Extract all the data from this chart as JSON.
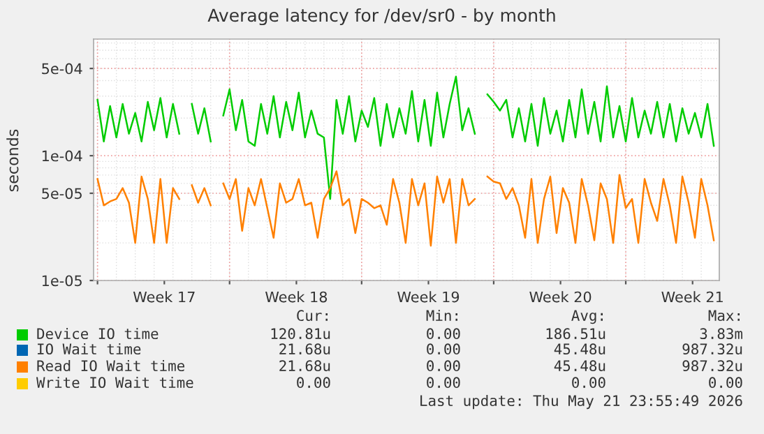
{
  "chart_data": {
    "type": "line",
    "title": "Average latency for /dev/sr0 - by month",
    "ylabel": "seconds",
    "log": "y",
    "grid": true,
    "legend": "bottom",
    "marker": "none",
    "line_style": "solid",
    "xlim": [
      "2026-04-19T19:00",
      "2026-05-22T23:00"
    ],
    "ylim": [
      1e-05,
      0.00086
    ],
    "xticks": [
      {
        "value": "2026-04-20",
        "label": null
      },
      {
        "value": "2026-04-23T13:00",
        "label": "Week 17"
      },
      {
        "value": "2026-04-27",
        "label": null
      },
      {
        "value": "2026-04-30T13:00",
        "label": "Week 18"
      },
      {
        "value": "2026-05-04",
        "label": null
      },
      {
        "value": "2026-05-07T13:00",
        "label": "Week 19"
      },
      {
        "value": "2026-05-11",
        "label": null
      },
      {
        "value": "2026-05-14T13:00",
        "label": "Week 20"
      },
      {
        "value": "2026-05-18",
        "label": null
      },
      {
        "value": "2026-05-21T13:00",
        "label": "Week 21"
      }
    ],
    "yticks": [
      {
        "value": 1e-05,
        "label": "1e-05"
      },
      {
        "value": 5e-05,
        "label": "5e-05"
      },
      {
        "value": 0.0001,
        "label": "1e-04"
      },
      {
        "value": 0.0005,
        "label": "5e-04"
      }
    ],
    "x": [
      "2026-04-20T00:00",
      "2026-04-20T08:00",
      "2026-04-20T16:00",
      "2026-04-21T00:00",
      "2026-04-21T08:00",
      "2026-04-21T16:00",
      "2026-04-22T00:00",
      "2026-04-22T08:00",
      "2026-04-22T16:00",
      "2026-04-23T00:00",
      "2026-04-23T08:00",
      "2026-04-23T16:00",
      "2026-04-24T00:00",
      "2026-04-24T08:00",
      "2026-04-24T16:00",
      "2026-04-25T00:00",
      "2026-04-25T08:00",
      "2026-04-25T16:00",
      "2026-04-26T00:00",
      "2026-04-26T08:00",
      "2026-04-26T16:00",
      "2026-04-27T00:00",
      "2026-04-27T08:00",
      "2026-04-27T16:00",
      "2026-04-28T00:00",
      "2026-04-28T08:00",
      "2026-04-28T16:00",
      "2026-04-29T00:00",
      "2026-04-29T08:00",
      "2026-04-29T16:00",
      "2026-04-30T00:00",
      "2026-04-30T08:00",
      "2026-04-30T16:00",
      "2026-05-01T00:00",
      "2026-05-01T08:00",
      "2026-05-01T16:00",
      "2026-05-02T00:00",
      "2026-05-02T08:00",
      "2026-05-02T16:00",
      "2026-05-03T00:00",
      "2026-05-03T08:00",
      "2026-05-03T16:00",
      "2026-05-04T00:00",
      "2026-05-04T08:00",
      "2026-05-04T16:00",
      "2026-05-05T00:00",
      "2026-05-05T08:00",
      "2026-05-05T16:00",
      "2026-05-06T00:00",
      "2026-05-06T08:00",
      "2026-05-06T16:00",
      "2026-05-07T00:00",
      "2026-05-07T08:00",
      "2026-05-07T16:00",
      "2026-05-08T00:00",
      "2026-05-08T08:00",
      "2026-05-08T16:00",
      "2026-05-09T00:00",
      "2026-05-09T08:00",
      "2026-05-09T16:00",
      "2026-05-10T00:00",
      "2026-05-10T08:00",
      "2026-05-10T16:00",
      "2026-05-11T00:00",
      "2026-05-11T08:00",
      "2026-05-11T16:00",
      "2026-05-12T00:00",
      "2026-05-12T08:00",
      "2026-05-12T16:00",
      "2026-05-13T00:00",
      "2026-05-13T08:00",
      "2026-05-13T16:00",
      "2026-05-14T00:00",
      "2026-05-14T08:00",
      "2026-05-14T16:00",
      "2026-05-15T00:00",
      "2026-05-15T08:00",
      "2026-05-15T16:00",
      "2026-05-16T00:00",
      "2026-05-16T08:00",
      "2026-05-16T16:00",
      "2026-05-17T00:00",
      "2026-05-17T08:00",
      "2026-05-17T16:00",
      "2026-05-18T00:00",
      "2026-05-18T08:00",
      "2026-05-18T16:00",
      "2026-05-19T00:00",
      "2026-05-19T08:00",
      "2026-05-19T16:00",
      "2026-05-20T00:00",
      "2026-05-20T08:00",
      "2026-05-20T16:00",
      "2026-05-21T00:00",
      "2026-05-21T08:00",
      "2026-05-21T16:00",
      "2026-05-22T00:00",
      "2026-05-22T08:00",
      "2026-05-22T16:00"
    ],
    "series": [
      {
        "name": "Device IO time",
        "color": "#00cc00",
        "values": [
          0.00028,
          0.00013,
          0.00025,
          0.00014,
          0.00026,
          0.00015,
          0.00022,
          0.00013,
          0.00027,
          0.00016,
          0.00029,
          0.00014,
          0.00026,
          0.00015,
          null,
          0.00026,
          0.00015,
          0.00024,
          0.00013,
          null,
          0.00021,
          0.00034,
          0.00016,
          0.00028,
          0.00013,
          0.00012,
          0.00026,
          0.00015,
          0.0003,
          0.00014,
          0.00027,
          0.00016,
          0.00032,
          0.00014,
          0.00023,
          0.00015,
          0.00014,
          4.5e-05,
          0.00028,
          0.00015,
          0.0003,
          0.00013,
          0.00023,
          0.00017,
          0.00029,
          0.00012,
          0.00026,
          0.00014,
          0.00024,
          0.00015,
          0.00033,
          0.00013,
          0.00028,
          0.00012,
          0.00032,
          0.00014,
          0.00026,
          0.00043,
          0.00016,
          0.00024,
          0.00015,
          null,
          0.00031,
          0.00027,
          0.00023,
          0.00028,
          0.00014,
          0.00024,
          0.00013,
          0.00026,
          0.00012,
          0.00029,
          0.00015,
          0.00023,
          0.00013,
          0.00028,
          0.00014,
          0.00034,
          0.00015,
          0.00027,
          0.00013,
          0.00036,
          0.00014,
          0.00025,
          0.00013,
          0.00029,
          0.00014,
          0.00023,
          0.00015,
          0.00027,
          0.00014,
          0.00026,
          0.00013,
          0.00024,
          0.00015,
          0.00022,
          0.00014,
          0.00026,
          0.00012
        ]
      },
      {
        "name": "IO Wait time",
        "color": "#0066b3",
        "values": [
          null,
          null,
          null,
          null,
          null,
          null,
          null,
          null,
          null,
          null,
          null,
          null,
          null,
          null,
          null,
          null,
          null,
          null,
          null,
          null,
          null,
          null,
          null,
          null,
          null,
          null,
          null,
          null,
          null,
          null,
          null,
          null,
          null,
          null,
          null,
          null,
          null,
          null,
          null,
          null,
          null,
          null,
          null,
          null,
          null,
          null,
          null,
          null,
          null,
          null,
          null,
          null,
          null,
          null,
          null,
          null,
          null,
          null,
          null,
          null,
          null,
          null,
          null,
          null,
          null,
          null,
          null,
          null,
          null,
          null,
          null,
          null,
          null,
          null,
          null,
          null,
          null,
          null,
          null,
          null,
          null,
          null,
          null,
          null,
          null,
          null,
          null,
          null,
          null,
          null,
          null,
          null,
          null,
          null,
          null,
          null,
          null,
          null,
          null
        ]
      },
      {
        "name": "Read IO Wait time",
        "color": "#ff8000",
        "values": [
          6.5e-05,
          4e-05,
          4.3e-05,
          4.5e-05,
          5.5e-05,
          4.2e-05,
          2e-05,
          6.8e-05,
          4.5e-05,
          2e-05,
          6.5e-05,
          2e-05,
          5.5e-05,
          4.5e-05,
          null,
          5.8e-05,
          4.2e-05,
          5.5e-05,
          4e-05,
          null,
          6e-05,
          4.5e-05,
          6.5e-05,
          2.5e-05,
          5.5e-05,
          4e-05,
          6.5e-05,
          3.8e-05,
          2.2e-05,
          6e-05,
          4.2e-05,
          4.5e-05,
          6.5e-05,
          4e-05,
          4.2e-05,
          2.2e-05,
          4.5e-05,
          5.5e-05,
          7.5e-05,
          4e-05,
          4.5e-05,
          2.4e-05,
          4.5e-05,
          4.2e-05,
          3.8e-05,
          4e-05,
          2.8e-05,
          6.5e-05,
          4.2e-05,
          2e-05,
          6.5e-05,
          4e-05,
          6e-05,
          1.9e-05,
          6.8e-05,
          4.2e-05,
          6.5e-05,
          2e-05,
          6.5e-05,
          4e-05,
          4.5e-05,
          null,
          6.8e-05,
          6.2e-05,
          6e-05,
          4.5e-05,
          5.5e-05,
          4e-05,
          2.2e-05,
          6.5e-05,
          2e-05,
          4.5e-05,
          6.8e-05,
          2.4e-05,
          5.5e-05,
          4.2e-05,
          2e-05,
          6.5e-05,
          4e-05,
          2.1e-05,
          6e-05,
          4.5e-05,
          2e-05,
          7e-05,
          3.8e-05,
          4.5e-05,
          2e-05,
          6.5e-05,
          4.2e-05,
          3e-05,
          6.5e-05,
          4e-05,
          2e-05,
          6.8e-05,
          4.2e-05,
          2.2e-05,
          6.5e-05,
          4e-05,
          2.1e-05
        ]
      },
      {
        "name": "Write IO Wait time",
        "color": "#ffcc00",
        "values": [
          null,
          null,
          null,
          null,
          null,
          null,
          null,
          null,
          null,
          null,
          null,
          null,
          null,
          null,
          null,
          null,
          null,
          null,
          null,
          null,
          null,
          null,
          null,
          null,
          null,
          null,
          null,
          null,
          null,
          null,
          null,
          null,
          null,
          null,
          null,
          null,
          null,
          null,
          null,
          null,
          null,
          null,
          null,
          null,
          null,
          null,
          null,
          null,
          null,
          null,
          null,
          null,
          null,
          null,
          null,
          null,
          null,
          null,
          null,
          null,
          null,
          null,
          null,
          null,
          null,
          null,
          null,
          null,
          null,
          null,
          null,
          null,
          null,
          null,
          null,
          null,
          null,
          null,
          null,
          null,
          null,
          null,
          null,
          null,
          null,
          null,
          null,
          null,
          null,
          null,
          null,
          null,
          null,
          null,
          null,
          null,
          null,
          null,
          null
        ]
      }
    ],
    "annotations": [
      "Cur:",
      "Min:",
      "Avg:",
      "Max:",
      "120.81u",
      "0.00",
      "186.51u",
      "3.83m",
      "21.68u",
      "0.00",
      "45.48u",
      "987.32u",
      "21.68u",
      "0.00",
      "45.48u",
      "987.32u",
      "0.00",
      "0.00",
      "0.00",
      "0.00",
      "Last update: Thu May 21 23:55:49 2026"
    ]
  }
}
